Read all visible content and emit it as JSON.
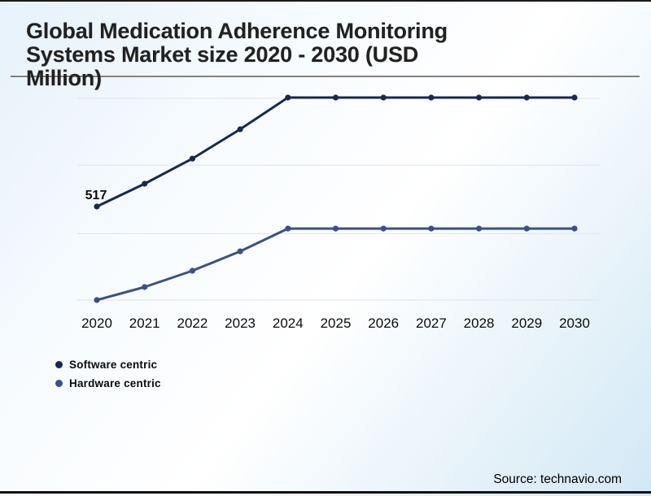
{
  "title": {
    "full": "Global Medication Adherence Monitoring Systems Market size 2020 - 2030 (USD Million)",
    "line1": "Global Medication Adherence Monitoring",
    "line2": "Systems Market size 2020 - 2030 (USD",
    "line3": "Million)"
  },
  "source": {
    "label": "Source: technavio.com"
  },
  "legend": [
    {
      "label": "Software centric",
      "color": "#16294e"
    },
    {
      "label": "Hardware centric",
      "color": "#3b5183"
    }
  ],
  "chart_data": {
    "type": "line",
    "title": "Global Medication Adherence Monitoring Systems Market size 2020 - 2030 (USD Million)",
    "xlabel": "",
    "ylabel": "USD Million",
    "x": [
      "2020",
      "2021",
      "2022",
      "2023",
      "2024",
      "2025",
      "2026",
      "2027",
      "2028",
      "2029",
      "2030"
    ],
    "series": [
      {
        "name": "Software centric",
        "color": "#16294e",
        "values": [
          517,
          632,
          759,
          907,
          1067,
          1067,
          1067,
          1067,
          1067,
          1067,
          1067
        ]
      },
      {
        "name": "Hardware centric",
        "color": "#3b5183",
        "values": [
          45,
          111,
          193,
          291,
          406,
          406,
          406,
          406,
          406,
          406,
          406
        ]
      }
    ],
    "data_labels": [
      {
        "series": "Software centric",
        "x": "2020",
        "text": "517"
      }
    ],
    "ylim": [
      0,
      1067
    ],
    "gridline_values": [
      45,
      381,
      726,
      1063
    ],
    "grid": "horizontal",
    "y_axis_ticks_visible": false,
    "legend_position": "bottom-left",
    "grid_color": "#dde3ec"
  }
}
